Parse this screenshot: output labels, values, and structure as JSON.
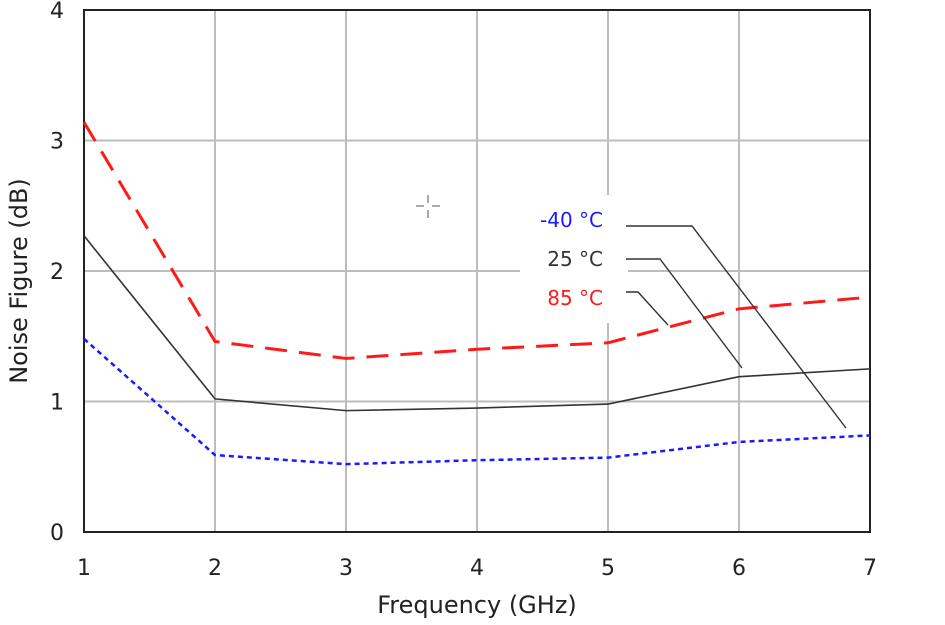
{
  "chart_data": {
    "type": "line",
    "title": "",
    "xlabel": "Frequency (GHz)",
    "ylabel": "Noise Figure (dB)",
    "xlim": [
      1,
      7
    ],
    "ylim": [
      0,
      4
    ],
    "x": [
      1,
      2,
      3,
      4,
      5,
      6,
      7
    ],
    "x_ticks": [
      "1",
      "2",
      "3",
      "4",
      "5",
      "6",
      "7"
    ],
    "y_ticks": [
      "0",
      "1",
      "2",
      "3",
      "4"
    ],
    "grid": true,
    "legend_placement": "center-right",
    "series": [
      {
        "name": "-40 °C",
        "values": [
          1.48,
          0.59,
          0.52,
          0.55,
          0.57,
          0.69,
          0.74
        ],
        "color": "#1a1aff",
        "dash": "dotted"
      },
      {
        "name": "25 °C",
        "values": [
          2.27,
          1.02,
          0.93,
          0.95,
          0.98,
          1.19,
          1.25
        ],
        "color": "#333333",
        "dash": "solid"
      },
      {
        "name": "85 °C",
        "values": [
          3.14,
          1.46,
          1.33,
          1.4,
          1.45,
          1.71,
          1.8
        ],
        "color": "#ff1a1a",
        "dash": "dashed"
      }
    ]
  }
}
